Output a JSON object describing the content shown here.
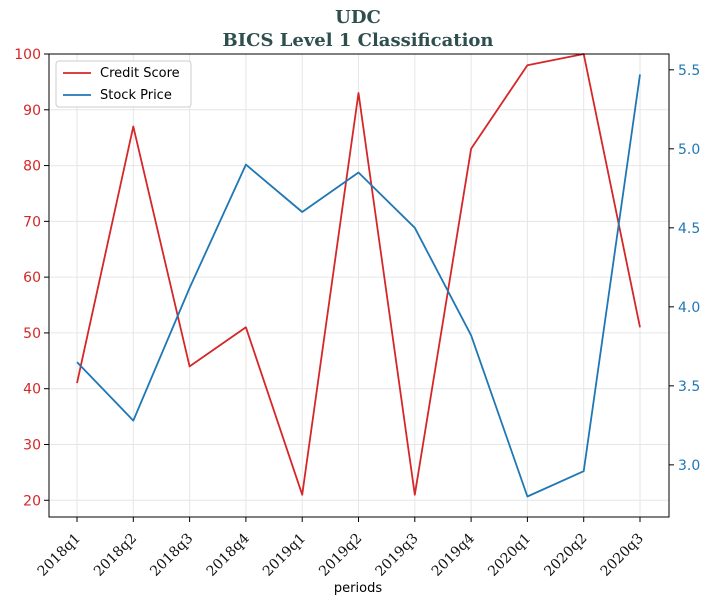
{
  "chart_data": {
    "type": "line",
    "title": "UDC",
    "subtitle": "BICS Level 1 Classification",
    "xlabel": "periods",
    "categories": [
      "2018q1",
      "2018q2",
      "2018q3",
      "2018q4",
      "2019q1",
      "2019q2",
      "2019q3",
      "2019q4",
      "2020q1",
      "2020q2",
      "2020q3"
    ],
    "series": [
      {
        "name": "Credit Score",
        "axis": "left",
        "color": "#d62728",
        "values": [
          41,
          87,
          44,
          51,
          21,
          93,
          21,
          83,
          98,
          100,
          51
        ]
      },
      {
        "name": "Stock Price",
        "axis": "right",
        "color": "#1f77b4",
        "values": [
          3.65,
          3.28,
          4.12,
          4.9,
          4.6,
          4.85,
          4.5,
          3.82,
          2.8,
          2.96,
          5.47
        ]
      }
    ],
    "ylim_left": [
      17,
      100
    ],
    "yticks_left": [
      20,
      30,
      40,
      50,
      60,
      70,
      80,
      90,
      100
    ],
    "ylim_right": [
      2.67,
      5.6
    ],
    "yticks_right": [
      "3.0",
      "3.5",
      "4.0",
      "4.5",
      "5.0",
      "5.5"
    ],
    "grid": true,
    "legend": "top-left"
  }
}
